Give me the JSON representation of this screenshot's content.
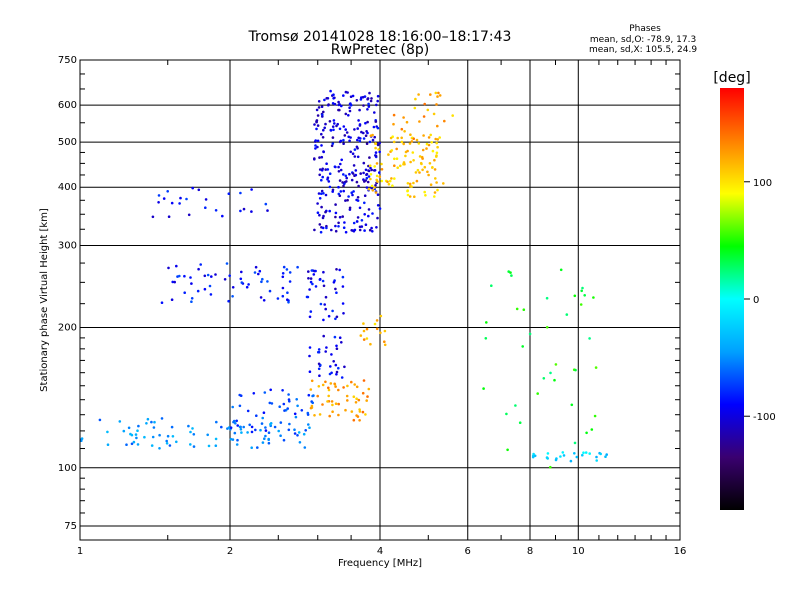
{
  "chart_data": {
    "type": "scatter",
    "title": "Tromsø 20141028 18:16:00–18:17:43",
    "subtitle": "RwPretec (8p)",
    "xlabel": "Frequency [MHz]",
    "ylabel": "Stationary phase Virtual Height [km]",
    "x_scale": "log",
    "y_scale": "log",
    "xlim": [
      1,
      16
    ],
    "ylim": [
      70,
      750
    ],
    "x_ticks": [
      1,
      2,
      4,
      6,
      8,
      10,
      16
    ],
    "y_ticks": [
      75,
      100,
      200,
      300,
      400,
      500,
      600,
      750
    ],
    "grid": true,
    "legend": {
      "title": "Phases",
      "lines": [
        "mean, sd,O: -78.9, 17.3",
        "mean, sd,X: 105.5, 24.9"
      ]
    },
    "colorbar": {
      "label": "[deg]",
      "ticks": [
        100,
        0,
        -100
      ],
      "range": [
        -180,
        180
      ],
      "colors": [
        "#000000",
        "#3a0070",
        "#0000ff",
        "#00a0ff",
        "#00ffff",
        "#00ff00",
        "#ffff00",
        "#ff8000",
        "#ff0000"
      ]
    },
    "clusters": [
      {
        "name": "o-trace-low",
        "x0": 1.0,
        "x1": 2.9,
        "y0": 110,
        "y1": 128,
        "phase": -50,
        "n": 90
      },
      {
        "name": "o-trace-rise",
        "x0": 2.0,
        "x1": 2.95,
        "y0": 118,
        "y1": 150,
        "phase": -70,
        "n": 50
      },
      {
        "name": "x-trace-low",
        "x0": 2.9,
        "x1": 3.8,
        "y0": 126,
        "y1": 155,
        "phase": 125,
        "n": 55
      },
      {
        "name": "f1-trace",
        "x0": 1.45,
        "x1": 2.75,
        "y0": 226,
        "y1": 275,
        "phase": -85,
        "n": 60
      },
      {
        "name": "f1-left",
        "x0": 1.4,
        "x1": 2.6,
        "y0": 345,
        "y1": 405,
        "phase": -90,
        "n": 25
      },
      {
        "name": "f2-spread",
        "x0": 2.95,
        "x1": 4.0,
        "y0": 320,
        "y1": 645,
        "phase": -100,
        "n": 300
      },
      {
        "name": "f2-x-spread",
        "x0": 3.8,
        "x1": 5.4,
        "y0": 380,
        "y1": 520,
        "phase": 110,
        "n": 110
      },
      {
        "name": "f2-upper-x",
        "x0": 4.2,
        "x1": 5.6,
        "y0": 500,
        "y1": 640,
        "phase": 120,
        "n": 30
      },
      {
        "name": "mid-vertical",
        "x0": 2.85,
        "x1": 3.4,
        "y0": 155,
        "y1": 270,
        "phase": -95,
        "n": 70
      },
      {
        "name": "x-mid",
        "x0": 3.6,
        "x1": 4.1,
        "y0": 180,
        "y1": 215,
        "phase": 115,
        "n": 15
      },
      {
        "name": "sparse-right",
        "x0": 6.2,
        "x1": 11.0,
        "y0": 100,
        "y1": 270,
        "phase": 40,
        "n": 40
      },
      {
        "name": "right-low",
        "x0": 7.8,
        "x1": 11.5,
        "y0": 103,
        "y1": 108,
        "phase": -20,
        "n": 25
      }
    ]
  }
}
